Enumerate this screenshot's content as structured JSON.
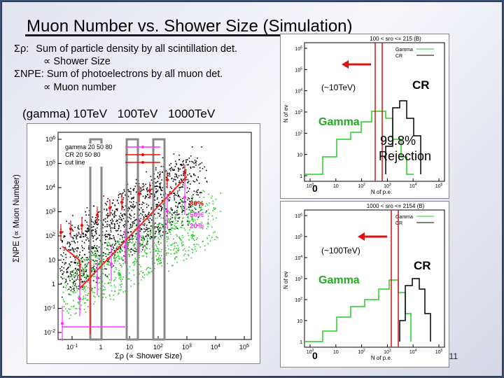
{
  "slide": {
    "title": "Muon Number vs. Shower Size (Simulation)",
    "page_number": "11",
    "definitions": [
      {
        "symbol": "Σρ:",
        "text": "Sum of particle density by all scintillation det."
      },
      {
        "symbol": "∝",
        "text": "Shower Size"
      },
      {
        "symbol": "ΣNPE:",
        "text": "Sum of photoelectrons by all muon det."
      },
      {
        "symbol": "∝",
        "text": "Muon number"
      }
    ],
    "energy_labels": {
      "prefix": "(gamma)",
      "e1": "10TeV",
      "e2": "100TeV",
      "e3": "1000TeV"
    }
  },
  "scatter": {
    "ylabel": "ΣNPE (∝ Muon Number)",
    "xlabel": "Σρ (∝ Shower Size)",
    "yticks": [
      "10^6",
      "10^5",
      "10^4",
      "10^3",
      "10^2",
      "10",
      "1",
      "10^-1",
      "10^-2"
    ],
    "xticks": [
      "10^-1",
      "1",
      "10",
      "10^2",
      "10^3",
      "10^4",
      "10^5"
    ],
    "legend": [
      {
        "label": "gamma 20 50 80",
        "color": "#ff33ff"
      },
      {
        "label": "CR 20 50 80",
        "color": "#ff0000"
      },
      {
        "label": "cut line",
        "color": "#ff0000"
      }
    ],
    "percent_labels": [
      "80%",
      "50%",
      "20%"
    ],
    "colors": {
      "cr": "#000000",
      "gamma": "#22cc22",
      "cut": "#ff2222",
      "gamma_err": "#ff33ff",
      "cr_err": "#ee1111"
    }
  },
  "hist_top": {
    "header": "100 < sro <= 215 (B)",
    "energy": "(~10TeV)",
    "cr_label": "CR",
    "gamma_label": "Gamma",
    "rejection": "99.8%",
    "rejection_word": "Rejection",
    "zero": "0",
    "xlabel": "N of p.e.",
    "ylabel": "N of ev",
    "legend": [
      "Gamma",
      "CR"
    ],
    "yticks": [
      "10^6",
      "10^5",
      "10^4",
      "10^3",
      "10^2",
      "10",
      "1"
    ],
    "xticks": [
      "10^0",
      "10",
      "10^2",
      "10^3",
      "10^4",
      "10^5"
    ]
  },
  "hist_bottom": {
    "header": "1000 < sro <= 2154 (B)",
    "energy": "(~100TeV)",
    "cr_label": "CR",
    "gamma_label": "Gamma",
    "zero": "0",
    "xlabel": "N of p.e.",
    "ylabel": "N of ev",
    "legend": [
      "Gamma",
      "CR"
    ],
    "yticks": [
      "10^6",
      "10^5",
      "10^4",
      "10^3",
      "10^2",
      "10",
      "1"
    ],
    "xticks": [
      "10^0",
      "10",
      "10^2",
      "10^3",
      "10^4",
      "10^5"
    ]
  }
}
